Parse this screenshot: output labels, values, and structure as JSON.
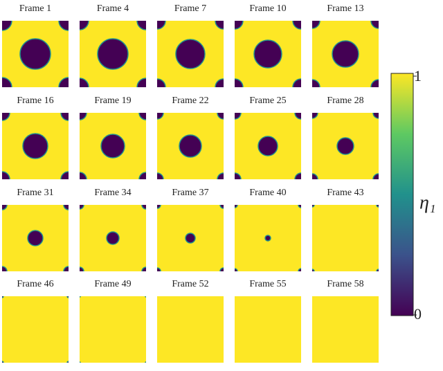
{
  "frames": [
    "Frame 1",
    "Frame 4",
    "Frame 7",
    "Frame 10",
    "Frame 13",
    "Frame 16",
    "Frame 19",
    "Frame 22",
    "Frame 25",
    "Frame 28",
    "Frame 31",
    "Frame 34",
    "Frame 37",
    "Frame 40",
    "Frame 43",
    "Frame 46",
    "Frame 49",
    "Frame 52",
    "Frame 55",
    "Frame 58"
  ],
  "colorbar": {
    "label": "η₁",
    "ticks": [
      "1",
      "0"
    ]
  }
}
